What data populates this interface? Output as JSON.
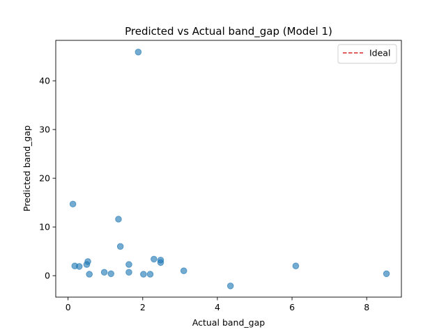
{
  "chart_data": {
    "type": "scatter",
    "title": "Predicted vs Actual band_gap (Model 1)",
    "xlabel": "Actual band_gap",
    "ylabel": "Predicted band_gap",
    "xlim": [
      -0.33,
      8.93
    ],
    "ylim": [
      -4.4,
      48.3
    ],
    "xticks": [
      0,
      2,
      4,
      6,
      8
    ],
    "yticks": [
      0,
      10,
      20,
      30,
      40
    ],
    "grid": false,
    "legend": {
      "placement": "top-right",
      "entries": [
        {
          "label": "Ideal",
          "color": "#d62728",
          "style": "dashed"
        }
      ]
    },
    "marker_color": "#1f77b4",
    "points": [
      {
        "x": 0.13,
        "y": 14.7
      },
      {
        "x": 0.18,
        "y": 2.0
      },
      {
        "x": 0.3,
        "y": 1.9
      },
      {
        "x": 0.5,
        "y": 2.3
      },
      {
        "x": 0.53,
        "y": 2.9
      },
      {
        "x": 0.57,
        "y": 0.3
      },
      {
        "x": 0.97,
        "y": 0.7
      },
      {
        "x": 1.15,
        "y": 0.4
      },
      {
        "x": 1.35,
        "y": 11.6
      },
      {
        "x": 1.4,
        "y": 6.0
      },
      {
        "x": 1.63,
        "y": 2.3
      },
      {
        "x": 1.63,
        "y": 0.7
      },
      {
        "x": 1.88,
        "y": 45.9
      },
      {
        "x": 2.02,
        "y": 0.3
      },
      {
        "x": 2.2,
        "y": 0.3
      },
      {
        "x": 2.3,
        "y": 3.4
      },
      {
        "x": 2.48,
        "y": 3.2
      },
      {
        "x": 2.48,
        "y": 2.7
      },
      {
        "x": 3.1,
        "y": 1.0
      },
      {
        "x": 4.35,
        "y": -2.1
      },
      {
        "x": 6.1,
        "y": 2.0
      },
      {
        "x": 8.53,
        "y": 0.4
      }
    ]
  }
}
